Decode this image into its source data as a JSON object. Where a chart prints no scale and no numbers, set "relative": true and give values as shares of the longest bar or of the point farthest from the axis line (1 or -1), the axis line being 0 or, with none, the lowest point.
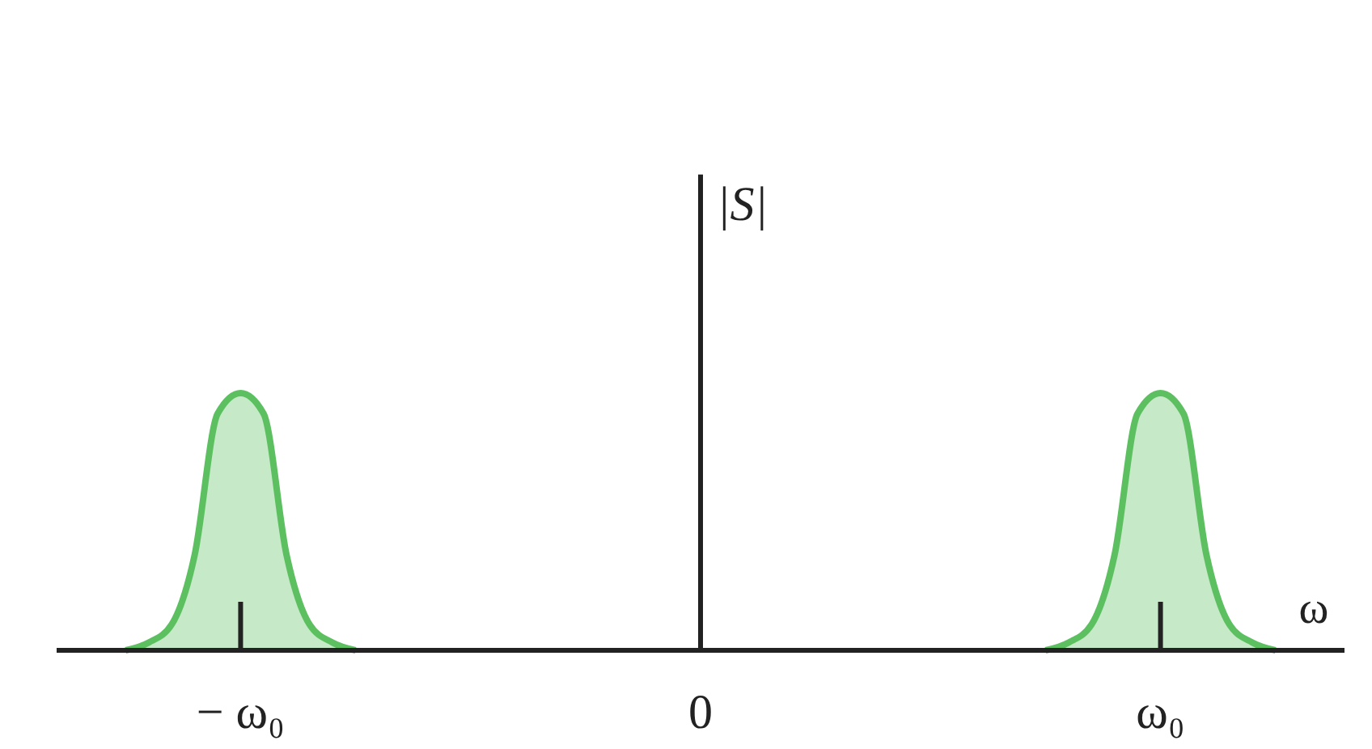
{
  "chart_data": {
    "type": "area",
    "relative": true,
    "xlabel": "ω",
    "ylabel": "|S|",
    "categories": [
      null,
      null,
      null,
      null,
      null,
      null,
      null,
      null,
      "− ω₀",
      null,
      null,
      null,
      null,
      null,
      null,
      null,
      null,
      null,
      null,
      null,
      null,
      null,
      null,
      null,
      null,
      null,
      null,
      null,
      "0",
      null,
      null,
      null,
      null,
      null,
      null,
      null,
      null,
      null,
      null,
      null,
      null,
      null,
      null,
      null,
      null,
      null,
      null,
      null,
      "ω₀",
      null,
      null,
      null,
      null,
      null,
      null,
      null,
      null
    ],
    "tick_labels": "x",
    "grid": false,
    "series": [
      {
        "color": "#5cc060",
        "values": [
          null,
          null,
          null,
          0,
          0.03,
          0.1,
          0.37,
          0.92,
          1,
          0.92,
          0.37,
          0.1,
          0.03,
          0,
          null,
          null,
          null,
          null,
          null,
          null,
          null,
          null,
          null,
          null,
          null,
          null,
          null,
          null,
          null,
          null,
          null,
          null,
          null,
          null,
          null,
          null,
          null,
          null,
          null,
          null,
          null,
          null,
          null,
          null,
          null,
          null,
          null,
          null,
          null,
          null,
          null,
          null,
          null,
          null,
          null,
          null,
          null
        ]
      },
      {
        "color": "#5cc060",
        "values": [
          null,
          null,
          null,
          null,
          null,
          null,
          null,
          null,
          null,
          null,
          null,
          null,
          null,
          null,
          null,
          null,
          null,
          null,
          null,
          null,
          null,
          null,
          null,
          null,
          null,
          null,
          null,
          null,
          null,
          null,
          null,
          null,
          null,
          null,
          null,
          null,
          null,
          null,
          null,
          null,
          null,
          null,
          null,
          0,
          0.03,
          0.1,
          0.37,
          0.92,
          1,
          0.92,
          0.37,
          0.1,
          0.03,
          0,
          null,
          null,
          null
        ]
      }
    ]
  }
}
